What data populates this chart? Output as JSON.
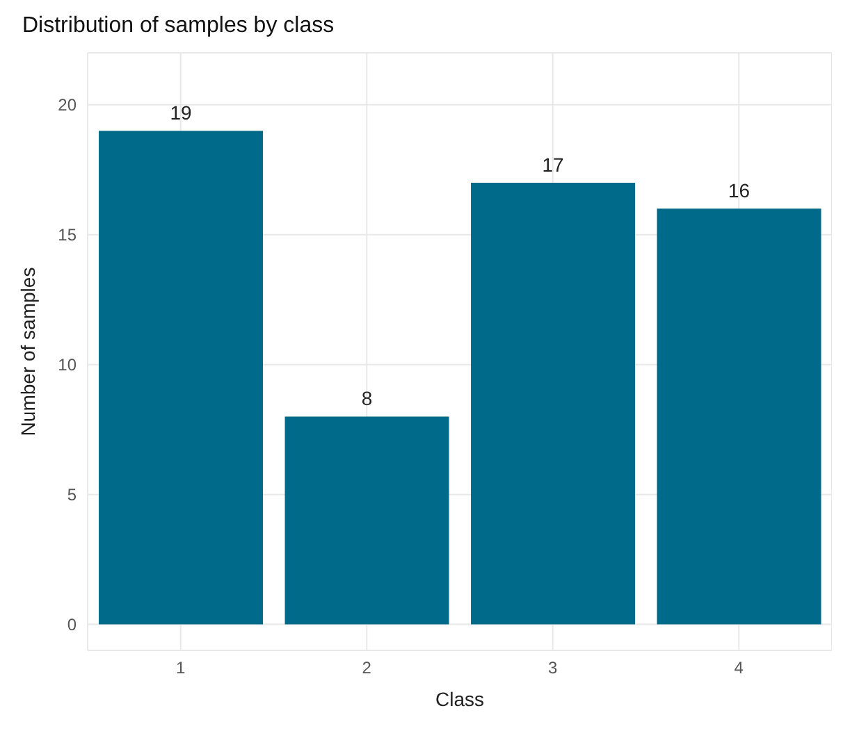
{
  "chart_data": {
    "type": "bar",
    "title": "Distribution of samples by class",
    "xlabel": "Class",
    "ylabel": "Number of samples",
    "categories": [
      "1",
      "2",
      "3",
      "4"
    ],
    "values": [
      19,
      8,
      17,
      16
    ],
    "color": "#006a8a",
    "ylim": [
      -1,
      22
    ],
    "yticks": [
      0,
      5,
      10,
      15,
      20
    ],
    "grid": true,
    "data_labels": true
  }
}
